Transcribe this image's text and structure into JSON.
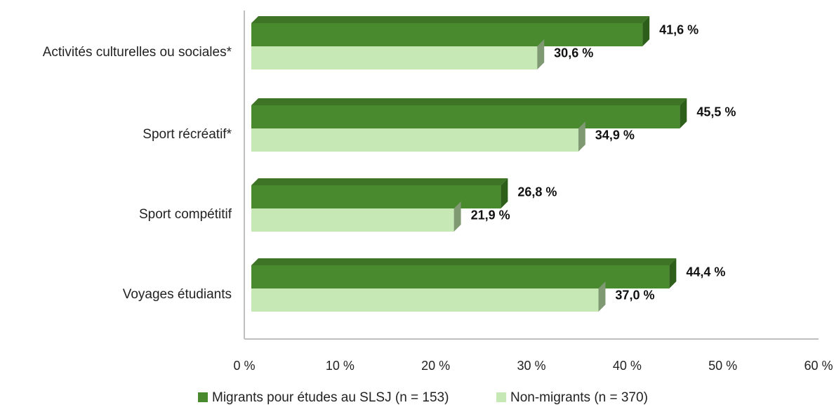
{
  "chart_data": {
    "type": "bar",
    "orientation": "horizontal",
    "categories": [
      "Activités culturelles ou sociales*",
      "Sport récréatif*",
      "Sport compétitif",
      "Voyages étudiants"
    ],
    "series": [
      {
        "name": "Migrants pour études au SLSJ (n = 153)",
        "values": [
          41.6,
          45.5,
          26.8,
          44.4
        ],
        "labels": [
          "41,6 %",
          "45,5 %",
          "26,8 %",
          "44,4 %"
        ],
        "color": "#4a8a2e"
      },
      {
        "name": "Non-migrants (n = 370)",
        "values": [
          30.6,
          34.9,
          21.9,
          37.0
        ],
        "labels": [
          "30,6 %",
          "34,9 %",
          "21,9 %",
          "37,0 %"
        ],
        "color": "#c5e8b4"
      }
    ],
    "xlim": [
      0,
      60
    ],
    "x_ticks": [
      "0 %",
      "10 %",
      "20 %",
      "30 %",
      "40 %",
      "50 %",
      "60 %"
    ],
    "legend_position": "bottom",
    "grid": false,
    "style": "3d"
  }
}
